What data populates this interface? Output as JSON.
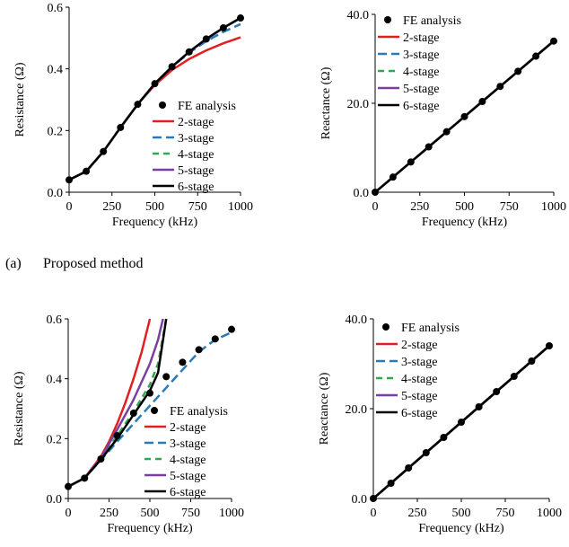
{
  "captions": {
    "a_label": "(a)",
    "a_text": "Proposed method"
  },
  "colors": {
    "fe": "#000000",
    "s2": "#e02020",
    "s3": "#2a7ab8",
    "s4": "#2fa84f",
    "s5": "#7a3fa0",
    "s6": "#000000"
  },
  "legend_labels": [
    "FE analysis",
    "2-stage",
    "3-stage",
    "4-stage",
    "5-stage",
    "6-stage"
  ],
  "chart_data": [
    {
      "id": "a-resistance",
      "type": "line",
      "xlabel": "Frequency (kHz)",
      "ylabel": "Resistance (Ω)",
      "xlim": [
        0,
        1000
      ],
      "ylim": [
        0,
        0.6
      ],
      "xticks": [
        "0",
        "250",
        "500",
        "750",
        "1000"
      ],
      "yticks": [
        "0.0",
        "0.2",
        "0.4",
        "0.6"
      ],
      "legend": "center-right",
      "x": [
        0,
        100,
        200,
        300,
        400,
        500,
        600,
        700,
        800,
        900,
        1000
      ],
      "fe": [
        0.04,
        0.068,
        0.132,
        0.21,
        0.285,
        0.352,
        0.407,
        0.455,
        0.497,
        0.533,
        0.565
      ],
      "series": [
        {
          "name": "2-stage",
          "values": [
            0.04,
            0.068,
            0.132,
            0.21,
            0.285,
            0.348,
            0.396,
            0.432,
            0.46,
            0.483,
            0.502
          ]
        },
        {
          "name": "3-stage",
          "values": [
            0.04,
            0.068,
            0.132,
            0.21,
            0.285,
            0.352,
            0.407,
            0.452,
            0.49,
            0.52,
            0.545
          ]
        },
        {
          "name": "4-stage",
          "values": [
            0.04,
            0.068,
            0.132,
            0.21,
            0.285,
            0.352,
            0.407,
            0.455,
            0.497,
            0.533,
            0.565
          ]
        },
        {
          "name": "5-stage",
          "values": [
            0.04,
            0.068,
            0.132,
            0.21,
            0.285,
            0.352,
            0.407,
            0.455,
            0.497,
            0.533,
            0.565
          ]
        },
        {
          "name": "6-stage",
          "values": [
            0.04,
            0.068,
            0.132,
            0.21,
            0.285,
            0.352,
            0.407,
            0.455,
            0.497,
            0.533,
            0.565
          ]
        }
      ]
    },
    {
      "id": "a-reactance",
      "type": "line",
      "xlabel": "Frequency (kHz)",
      "ylabel": "Reactance (Ω)",
      "xlim": [
        0,
        1000
      ],
      "ylim": [
        0,
        40
      ],
      "xticks": [
        "0",
        "250",
        "500",
        "750",
        "1000"
      ],
      "yticks": [
        "0.0",
        "20.0",
        "40.0"
      ],
      "legend": "top-left",
      "x": [
        0,
        100,
        200,
        300,
        400,
        500,
        600,
        700,
        800,
        900,
        1000
      ],
      "fe": [
        0,
        3.4,
        6.8,
        10.2,
        13.6,
        17.0,
        20.4,
        23.8,
        27.2,
        30.6,
        34.0
      ],
      "series": [
        {
          "name": "2-stage",
          "values": [
            0,
            3.4,
            6.8,
            10.2,
            13.6,
            17.0,
            20.4,
            23.8,
            27.2,
            30.6,
            34.0
          ]
        },
        {
          "name": "3-stage",
          "values": [
            0,
            3.4,
            6.8,
            10.2,
            13.6,
            17.0,
            20.4,
            23.8,
            27.2,
            30.6,
            34.0
          ]
        },
        {
          "name": "4-stage",
          "values": [
            0,
            3.4,
            6.8,
            10.2,
            13.6,
            17.0,
            20.4,
            23.8,
            27.2,
            30.6,
            34.0
          ]
        },
        {
          "name": "5-stage",
          "values": [
            0,
            3.4,
            6.8,
            10.2,
            13.6,
            17.0,
            20.4,
            23.8,
            27.2,
            30.6,
            34.0
          ]
        },
        {
          "name": "6-stage",
          "values": [
            0,
            3.4,
            6.8,
            10.2,
            13.6,
            17.0,
            20.4,
            23.8,
            27.2,
            30.6,
            34.0
          ]
        }
      ]
    },
    {
      "id": "b-resistance",
      "type": "line",
      "xlabel": "Frequency (kHz)",
      "ylabel": "Resistance (Ω)",
      "xlim": [
        0,
        1000
      ],
      "ylim": [
        0,
        0.6
      ],
      "xticks": [
        "0",
        "250",
        "500",
        "750",
        "1000"
      ],
      "yticks": [
        "0.0",
        "0.2",
        "0.4",
        "0.6"
      ],
      "legend": "bottom-right",
      "x": [
        0,
        100,
        200,
        300,
        400,
        500,
        600,
        700,
        800,
        900,
        1000
      ],
      "fe": [
        0.04,
        0.068,
        0.132,
        0.21,
        0.285,
        0.352,
        0.407,
        0.455,
        0.497,
        0.533,
        0.565
      ],
      "series": [
        {
          "name": "2-stage",
          "x": [
            0,
            100,
            200,
            250,
            300,
            350,
            400,
            450,
            500
          ],
          "values": [
            0.04,
            0.068,
            0.14,
            0.19,
            0.25,
            0.32,
            0.4,
            0.49,
            0.6
          ]
        },
        {
          "name": "3-stage",
          "x": [
            0,
            100,
            200,
            300,
            400,
            500,
            600,
            700,
            800,
            900,
            1000
          ],
          "values": [
            0.04,
            0.068,
            0.128,
            0.19,
            0.25,
            0.31,
            0.37,
            0.43,
            0.49,
            0.53,
            0.555
          ]
        },
        {
          "name": "4-stage",
          "x": [
            0,
            100,
            200,
            300,
            400,
            500,
            550,
            600
          ],
          "values": [
            0.04,
            0.068,
            0.132,
            0.21,
            0.29,
            0.38,
            0.45,
            0.6
          ]
        },
        {
          "name": "5-stage",
          "x": [
            0,
            100,
            200,
            300,
            400,
            500,
            550,
            580
          ],
          "values": [
            0.04,
            0.068,
            0.136,
            0.23,
            0.33,
            0.45,
            0.53,
            0.6
          ]
        },
        {
          "name": "6-stage",
          "x": [
            0,
            100,
            200,
            300,
            400,
            500,
            550,
            600
          ],
          "values": [
            0.04,
            0.068,
            0.13,
            0.2,
            0.28,
            0.36,
            0.42,
            0.6
          ]
        }
      ]
    },
    {
      "id": "b-reactance",
      "type": "line",
      "xlabel": "Frequency (kHz)",
      "ylabel": "Reactance (Ω)",
      "xlim": [
        0,
        1000
      ],
      "ylim": [
        0,
        40
      ],
      "xticks": [
        "0",
        "250",
        "500",
        "750",
        "1000"
      ],
      "yticks": [
        "0.0",
        "20.0",
        "40.0"
      ],
      "legend": "top-left",
      "x": [
        0,
        100,
        200,
        300,
        400,
        500,
        600,
        700,
        800,
        900,
        1000
      ],
      "fe": [
        0,
        3.4,
        6.8,
        10.2,
        13.6,
        17.0,
        20.4,
        23.8,
        27.2,
        30.6,
        34.0
      ],
      "series": [
        {
          "name": "2-stage",
          "values": [
            0,
            3.4,
            6.8,
            10.2,
            13.6,
            17.0,
            20.4,
            23.8,
            27.2,
            30.6,
            34.0
          ]
        },
        {
          "name": "3-stage",
          "values": [
            0,
            3.4,
            6.8,
            10.2,
            13.6,
            17.0,
            20.4,
            23.8,
            27.2,
            30.6,
            34.0
          ]
        },
        {
          "name": "4-stage",
          "values": [
            0,
            3.4,
            6.8,
            10.2,
            13.6,
            17.0,
            20.4,
            23.8,
            27.2,
            30.6,
            34.0
          ]
        },
        {
          "name": "5-stage",
          "values": [
            0,
            3.4,
            6.8,
            10.2,
            13.6,
            17.0,
            20.4,
            23.8,
            27.2,
            30.6,
            34.0
          ]
        },
        {
          "name": "6-stage",
          "values": [
            0,
            3.4,
            6.8,
            10.2,
            13.6,
            17.0,
            20.4,
            23.8,
            27.2,
            30.6,
            34.0
          ]
        }
      ]
    }
  ]
}
